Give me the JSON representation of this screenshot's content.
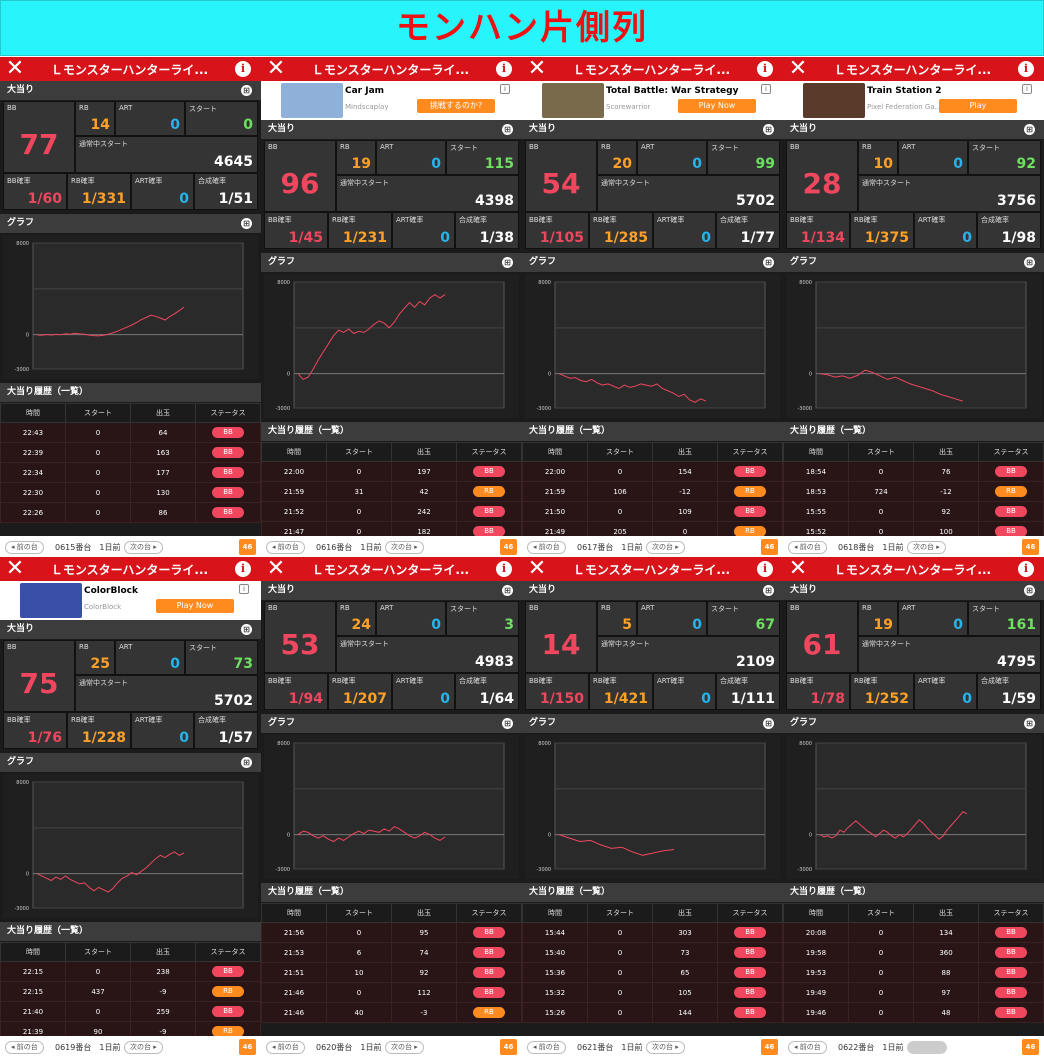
{
  "banner_title": "モンハン片側列",
  "labels": {
    "machine_title": "Ｌモンスターハンターライ...",
    "jackpot": "大当り",
    "graph": "グラフ",
    "history": "大当り履歴（一覧）",
    "bb": "BB",
    "rb": "RB",
    "art": "ART",
    "start": "スタート",
    "normal_start": "通常中スタート",
    "bb_rate": "BB確率",
    "rb_rate": "RB確率",
    "art_rate": "ART確率",
    "total_rate": "合成確率",
    "col_time": "時間",
    "col_start": "スタート",
    "col_out": "出玉",
    "col_status": "ステータス",
    "prev": "前の台",
    "next": "次の台",
    "days": "1日前",
    "y_max": "8000",
    "y_zero": "0",
    "y_min": "-3000",
    "logo": "46"
  },
  "colors": {
    "accent_red": "#d81319",
    "bb": "#f0475f",
    "rb": "#ffa126",
    "art": "#26b4ec",
    "start": "#6ce15f",
    "banner": "#28f5fb"
  },
  "panels": [
    {
      "machine": "0615番台",
      "bb": "77",
      "rb": "14",
      "art": "0",
      "start": "0",
      "normal_start": "4645",
      "bb_rate": "1/60",
      "rb_rate": "1/331",
      "art_rate": "0",
      "total_rate": "1/51",
      "has_ad": false,
      "graph": [
        -20,
        -60,
        10,
        -30,
        20,
        -10,
        80,
        40,
        120,
        60,
        30,
        -40,
        -80,
        -110,
        -60,
        30,
        150,
        300,
        480,
        660,
        840,
        1060,
        1300,
        1500,
        1700,
        1600,
        1450,
        1280,
        1580,
        1820,
        2100,
        2400
      ],
      "history": [
        [
          "22:43",
          "0",
          "64",
          "BB"
        ],
        [
          "22:39",
          "0",
          "163",
          "BB"
        ],
        [
          "22:34",
          "0",
          "177",
          "BB"
        ],
        [
          "22:30",
          "0",
          "130",
          "BB"
        ],
        [
          "22:26",
          "0",
          "86",
          "BB"
        ]
      ]
    },
    {
      "machine": "0616番台",
      "bb": "96",
      "rb": "19",
      "art": "0",
      "start": "115",
      "normal_start": "4398",
      "bb_rate": "1/45",
      "rb_rate": "1/231",
      "art_rate": "0",
      "total_rate": "1/38",
      "has_ad": true,
      "ad": {
        "name": "Car Jam",
        "publisher": "Mindscaplay",
        "button": "挑戦するのか?",
        "thumb": "#8fb1d9"
      },
      "graph": [
        0,
        -500,
        -300,
        400,
        1200,
        1900,
        2600,
        3300,
        3800,
        3600,
        3900,
        3500,
        3700,
        3600,
        3900,
        4300,
        4600,
        4400,
        4000,
        4500,
        5200,
        5700,
        6200,
        5800,
        6300,
        6000,
        6600,
        6900,
        6600,
        6900
      ],
      "history": [
        [
          "22:00",
          "0",
          "197",
          "BB"
        ],
        [
          "21:59",
          "31",
          "42",
          "RB"
        ],
        [
          "21:52",
          "0",
          "242",
          "BB"
        ],
        [
          "21:47",
          "0",
          "182",
          "BB"
        ]
      ]
    },
    {
      "machine": "0617番台",
      "bb": "54",
      "rb": "20",
      "art": "0",
      "start": "99",
      "normal_start": "5702",
      "bb_rate": "1/105",
      "rb_rate": "1/285",
      "art_rate": "0",
      "total_rate": "1/77",
      "has_ad": true,
      "ad": {
        "name": "Total Battle: War Strategy",
        "publisher": "Scorewarrior",
        "button": "Play Now",
        "thumb": "#7a6a4c"
      },
      "graph": [
        0,
        -200,
        -400,
        -350,
        -600,
        -700,
        -500,
        -800,
        -1000,
        -900,
        -1100,
        -1300,
        -1000,
        -1200,
        -1100,
        -900,
        -1000,
        -1100,
        -900,
        -1300,
        -1500,
        -1700,
        -2000,
        -1800,
        -2300,
        -2500,
        -2200,
        -2400
      ],
      "history": [
        [
          "22:00",
          "0",
          "154",
          "BB"
        ],
        [
          "21:59",
          "106",
          "-12",
          "RB"
        ],
        [
          "21:50",
          "0",
          "109",
          "BB"
        ],
        [
          "21:49",
          "205",
          "0",
          "RB"
        ]
      ]
    },
    {
      "machine": "0618番台",
      "bb": "28",
      "rb": "10",
      "art": "0",
      "start": "92",
      "normal_start": "3756",
      "bb_rate": "1/134",
      "rb_rate": "1/375",
      "art_rate": "0",
      "total_rate": "1/98",
      "has_ad": true,
      "ad": {
        "name": "Train Station 2",
        "publisher": "Pixel Federation Ga...",
        "button": "Play",
        "thumb": "#5a3a2a"
      },
      "graph": [
        0,
        -100,
        -300,
        -200,
        -400,
        -150,
        300,
        100,
        -200,
        -500,
        -300,
        -600,
        -900,
        -1100,
        -1300,
        -1500,
        -1800,
        -2000,
        -2200,
        -2400
      ],
      "history": [
        [
          "18:54",
          "0",
          "76",
          "BB"
        ],
        [
          "18:53",
          "724",
          "-12",
          "RB"
        ],
        [
          "15:55",
          "0",
          "92",
          "BB"
        ],
        [
          "15:52",
          "0",
          "100",
          "BB"
        ]
      ]
    },
    {
      "machine": "0619番台",
      "bb": "75",
      "rb": "25",
      "art": "0",
      "start": "73",
      "normal_start": "5702",
      "bb_rate": "1/76",
      "rb_rate": "1/228",
      "art_rate": "0",
      "total_rate": "1/57",
      "has_ad": true,
      "ad": {
        "name": "ColorBlock",
        "publisher": "ColorBlock",
        "button": "Play Now",
        "thumb": "#3a4fa8"
      },
      "graph": [
        0,
        -200,
        -400,
        -600,
        -300,
        -500,
        -200,
        -500,
        -700,
        -900,
        -800,
        -1200,
        -1500,
        -1200,
        -1400,
        -1600,
        -1300,
        -800,
        -400,
        -200,
        100,
        -100,
        200,
        500,
        900,
        1300,
        1600,
        1400,
        1700,
        1900,
        1600,
        1800
      ],
      "history": [
        [
          "22:15",
          "0",
          "238",
          "BB"
        ],
        [
          "22:15",
          "437",
          "-9",
          "RB"
        ],
        [
          "21:40",
          "0",
          "259",
          "BB"
        ],
        [
          "21:39",
          "90",
          "-9",
          "RB"
        ]
      ]
    },
    {
      "machine": "0620番台",
      "bb": "53",
      "rb": "24",
      "art": "0",
      "start": "3",
      "normal_start": "4983",
      "bb_rate": "1/94",
      "rb_rate": "1/207",
      "art_rate": "0",
      "total_rate": "1/64",
      "has_ad": false,
      "graph": [
        0,
        300,
        200,
        -100,
        -300,
        -100,
        -400,
        -600,
        -300,
        -500,
        -200,
        100,
        300,
        100,
        400,
        300,
        200,
        500,
        300,
        700,
        500,
        200,
        -100,
        -300,
        -100,
        200,
        0,
        -300,
        -500,
        -200
      ],
      "history": [
        [
          "21:56",
          "0",
          "95",
          "BB"
        ],
        [
          "21:53",
          "6",
          "74",
          "BB"
        ],
        [
          "21:51",
          "10",
          "92",
          "BB"
        ],
        [
          "21:46",
          "0",
          "112",
          "BB"
        ],
        [
          "21:46",
          "40",
          "-3",
          "RB"
        ]
      ]
    },
    {
      "machine": "0621番台",
      "bb": "14",
      "rb": "5",
      "art": "0",
      "start": "67",
      "normal_start": "2109",
      "bb_rate": "1/150",
      "rb_rate": "1/421",
      "art_rate": "0",
      "total_rate": "1/111",
      "has_ad": false,
      "graph": [
        0,
        -300,
        -600,
        -500,
        -900,
        -1200,
        -1100,
        -1500,
        -1800,
        -1600,
        -1400,
        -1300
      ],
      "history": [
        [
          "15:44",
          "0",
          "303",
          "BB"
        ],
        [
          "15:40",
          "0",
          "73",
          "BB"
        ],
        [
          "15:36",
          "0",
          "65",
          "BB"
        ],
        [
          "15:32",
          "0",
          "105",
          "BB"
        ],
        [
          "15:26",
          "0",
          "144",
          "BB"
        ]
      ]
    },
    {
      "machine": "0622番台",
      "bb": "61",
      "rb": "19",
      "art": "0",
      "start": "161",
      "normal_start": "4795",
      "bb_rate": "1/78",
      "rb_rate": "1/252",
      "art_rate": "0",
      "total_rate": "1/59",
      "has_ad": false,
      "next_disabled": true,
      "graph": [
        0,
        -200,
        -100,
        -300,
        -100,
        400,
        200,
        600,
        900,
        1200,
        900,
        600,
        300,
        100,
        -200,
        100,
        400,
        200,
        -100,
        -300,
        0,
        -200,
        100,
        500,
        900,
        1300,
        1000,
        600,
        200,
        -100,
        -400,
        -100,
        400,
        800,
        1200,
        1600,
        2000,
        1800
      ],
      "history": [
        [
          "20:08",
          "0",
          "134",
          "BB"
        ],
        [
          "19:58",
          "0",
          "360",
          "BB"
        ],
        [
          "19:53",
          "0",
          "88",
          "BB"
        ],
        [
          "19:49",
          "0",
          "97",
          "BB"
        ],
        [
          "19:46",
          "0",
          "48",
          "BB"
        ]
      ]
    }
  ]
}
